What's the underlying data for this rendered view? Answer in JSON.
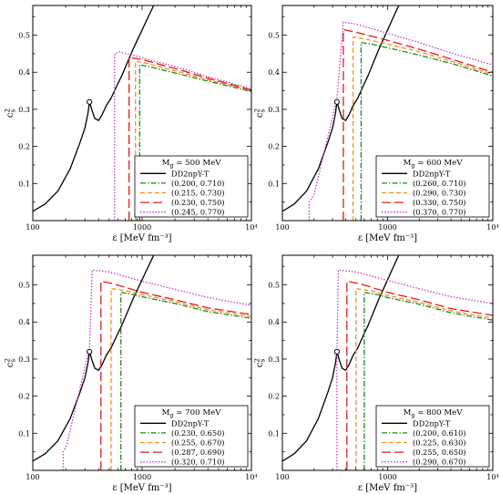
{
  "chart_data": [
    {
      "type": "line",
      "panel": "top-left",
      "xlabel": "ε [MeV fm⁻³]",
      "ylabel": "c_s²",
      "xscale": "log",
      "xlim": [
        100,
        10000
      ],
      "ylim": [
        0,
        0.58
      ],
      "xticks": [
        {
          "value": 100,
          "label": "100"
        },
        {
          "value": 1000,
          "label": "1000"
        },
        {
          "value": 10000,
          "label": "10⁴"
        }
      ],
      "yticks": [
        {
          "value": 0.1,
          "label": "0.1"
        },
        {
          "value": 0.2,
          "label": "0.2"
        },
        {
          "value": 0.3,
          "label": "0.3"
        },
        {
          "value": 0.4,
          "label": "0.4"
        },
        {
          "value": 0.5,
          "label": "0.5"
        }
      ],
      "legend_title": "M_g = 500 MeV",
      "legend_placement": "bottom-right",
      "critical_point": {
        "x": 330,
        "y": 0.32
      },
      "series": [
        {
          "name": "DD2npY-T",
          "color": "#000000",
          "dash": "solid",
          "x": [
            100,
            130,
            170,
            220,
            270,
            300,
            320,
            330,
            350,
            370,
            400,
            430,
            470,
            520,
            580,
            650,
            730,
            820,
            950,
            1100,
            1300,
            1500,
            1700
          ],
          "y": [
            0.025,
            0.045,
            0.08,
            0.14,
            0.21,
            0.25,
            0.29,
            0.32,
            0.295,
            0.275,
            0.27,
            0.285,
            0.31,
            0.33,
            0.36,
            0.39,
            0.425,
            0.46,
            0.5,
            0.54,
            0.585,
            0.62,
            0.65
          ]
        },
        {
          "name": "(0.200, 0.710)",
          "color": "#1a8a1a",
          "dash": "dashdot",
          "x": [
            950,
            950,
            1200,
            2000,
            4000,
            10000
          ],
          "y": [
            0.0,
            0.42,
            0.414,
            0.398,
            0.376,
            0.348
          ]
        },
        {
          "name": "(0.215, 0.730)",
          "color": "#ff8c1a",
          "dash": "dash",
          "x": [
            870,
            870,
            1100,
            2000,
            4000,
            10000
          ],
          "y": [
            0.0,
            0.43,
            0.424,
            0.404,
            0.38,
            0.35
          ]
        },
        {
          "name": "(0.230, 0.750)",
          "color": "#e31a1c",
          "dash": "longdash",
          "x": [
            760,
            760,
            1000,
            2000,
            4000,
            10000
          ],
          "y": [
            0.0,
            0.44,
            0.434,
            0.41,
            0.384,
            0.352
          ]
        },
        {
          "name": "(0.245, 0.770)",
          "color": "#cc33cc",
          "dash": "dot",
          "x": [
            560,
            560,
            620,
            800,
            1200,
            2000,
            4000,
            10000
          ],
          "y": [
            0.0,
            0.45,
            0.455,
            0.447,
            0.432,
            0.416,
            0.388,
            0.355
          ]
        }
      ]
    },
    {
      "type": "line",
      "panel": "top-right",
      "xlabel": "ε [MeV fm⁻³]",
      "ylabel": "c_s²",
      "xscale": "log",
      "xlim": [
        100,
        10000
      ],
      "ylim": [
        0,
        0.58
      ],
      "xticks": [
        {
          "value": 100,
          "label": "100"
        },
        {
          "value": 1000,
          "label": "1000"
        },
        {
          "value": 10000,
          "label": "10⁴"
        }
      ],
      "yticks": [
        {
          "value": 0.1,
          "label": "0.1"
        },
        {
          "value": 0.2,
          "label": "0.2"
        },
        {
          "value": 0.3,
          "label": "0.3"
        },
        {
          "value": 0.4,
          "label": "0.4"
        },
        {
          "value": 0.5,
          "label": "0.5"
        }
      ],
      "legend_title": "M_g = 600 MeV",
      "legend_placement": "bottom-right",
      "critical_point": {
        "x": 330,
        "y": 0.32
      },
      "series": [
        {
          "name": "DD2npY-T",
          "color": "#000000",
          "dash": "solid",
          "x": [
            100,
            130,
            170,
            220,
            270,
            300,
            320,
            330,
            350,
            370,
            400,
            430,
            470,
            520,
            580,
            650,
            730,
            820,
            950,
            1100,
            1300,
            1500,
            1700
          ],
          "y": [
            0.025,
            0.045,
            0.08,
            0.14,
            0.21,
            0.25,
            0.29,
            0.32,
            0.295,
            0.275,
            0.27,
            0.285,
            0.31,
            0.33,
            0.36,
            0.39,
            0.425,
            0.46,
            0.5,
            0.54,
            0.585,
            0.62,
            0.65
          ]
        },
        {
          "name": "(0.260, 0.710)",
          "color": "#1a8a1a",
          "dash": "dashdot",
          "x": [
            560,
            560,
            700,
            1000,
            2000,
            4000,
            10000
          ],
          "y": [
            0.0,
            0.48,
            0.476,
            0.466,
            0.446,
            0.424,
            0.39
          ]
        },
        {
          "name": "(0.290, 0.730)",
          "color": "#ff8c1a",
          "dash": "dash",
          "x": [
            470,
            470,
            600,
            1000,
            2000,
            4000,
            10000
          ],
          "y": [
            0.0,
            0.495,
            0.49,
            0.476,
            0.455,
            0.43,
            0.395
          ]
        },
        {
          "name": "(0.330, 0.750)",
          "color": "#e31a1c",
          "dash": "longdash",
          "x": [
            380,
            380,
            500,
            1000,
            2000,
            4000,
            10000
          ],
          "y": [
            0.0,
            0.515,
            0.508,
            0.486,
            0.462,
            0.436,
            0.4
          ]
        },
        {
          "name": "(0.370, 0.770)",
          "color": "#cc33cc",
          "dash": "dot",
          "x": [
            180,
            180,
            200,
            330,
            380,
            500,
            1000,
            2000,
            4000,
            10000
          ],
          "y": [
            0.0,
            0.05,
            0.07,
            0.33,
            0.535,
            0.53,
            0.505,
            0.48,
            0.452,
            0.42
          ]
        }
      ]
    },
    {
      "type": "line",
      "panel": "bottom-left",
      "xlabel": "ε [MeV fm⁻³]",
      "ylabel": "c_s²",
      "xscale": "log",
      "xlim": [
        100,
        10000
      ],
      "ylim": [
        0,
        0.58
      ],
      "xticks": [
        {
          "value": 100,
          "label": "100"
        },
        {
          "value": 1000,
          "label": "1000"
        },
        {
          "value": 10000,
          "label": "10⁴"
        }
      ],
      "yticks": [
        {
          "value": 0.1,
          "label": "0.1"
        },
        {
          "value": 0.2,
          "label": "0.2"
        },
        {
          "value": 0.3,
          "label": "0.3"
        },
        {
          "value": 0.4,
          "label": "0.4"
        },
        {
          "value": 0.5,
          "label": "0.5"
        }
      ],
      "legend_title": "M_g = 700 MeV",
      "legend_placement": "bottom-right",
      "critical_point": {
        "x": 330,
        "y": 0.32
      },
      "series": [
        {
          "name": "DD2npY-T",
          "color": "#000000",
          "dash": "solid",
          "x": [
            100,
            130,
            170,
            220,
            270,
            300,
            320,
            330,
            350,
            370,
            400,
            430,
            470,
            520,
            580,
            650,
            730,
            820,
            950,
            1100,
            1300,
            1500,
            1700
          ],
          "y": [
            0.025,
            0.045,
            0.08,
            0.14,
            0.21,
            0.25,
            0.29,
            0.32,
            0.295,
            0.275,
            0.27,
            0.285,
            0.31,
            0.33,
            0.36,
            0.39,
            0.425,
            0.46,
            0.5,
            0.54,
            0.585,
            0.62,
            0.65
          ]
        },
        {
          "name": "(0.230, 0.650)",
          "color": "#1a8a1a",
          "dash": "dashdot",
          "x": [
            640,
            640,
            800,
            1000,
            2000,
            4000,
            10000
          ],
          "y": [
            0.0,
            0.48,
            0.475,
            0.468,
            0.45,
            0.428,
            0.41
          ]
        },
        {
          "name": "(0.255, 0.670)",
          "color": "#ff8c1a",
          "dash": "dash",
          "x": [
            520,
            520,
            700,
            1000,
            2000,
            4000,
            10000
          ],
          "y": [
            0.0,
            0.49,
            0.485,
            0.474,
            0.455,
            0.433,
            0.415
          ]
        },
        {
          "name": "(0.287, 0.690)",
          "color": "#e31a1c",
          "dash": "longdash",
          "x": [
            420,
            420,
            550,
            1000,
            2000,
            4000,
            10000
          ],
          "y": [
            0.0,
            0.51,
            0.503,
            0.48,
            0.46,
            0.438,
            0.42
          ]
        },
        {
          "name": "(0.320, 0.710)",
          "color": "#cc33cc",
          "dash": "dot",
          "x": [
            190,
            190,
            205,
            330,
            350,
            500,
            1000,
            2000,
            4000,
            10000
          ],
          "y": [
            0.0,
            0.05,
            0.07,
            0.33,
            0.54,
            0.535,
            0.51,
            0.488,
            0.466,
            0.445
          ]
        }
      ]
    },
    {
      "type": "line",
      "panel": "bottom-right",
      "xlabel": "ε [MeV fm⁻³]",
      "ylabel": "c_s²",
      "xscale": "log",
      "xlim": [
        100,
        10000
      ],
      "ylim": [
        0,
        0.58
      ],
      "xticks": [
        {
          "value": 100,
          "label": "100"
        },
        {
          "value": 1000,
          "label": "1000"
        },
        {
          "value": 10000,
          "label": "10⁴"
        }
      ],
      "yticks": [
        {
          "value": 0.1,
          "label": "0.1"
        },
        {
          "value": 0.2,
          "label": "0.2"
        },
        {
          "value": 0.3,
          "label": "0.3"
        },
        {
          "value": 0.4,
          "label": "0.4"
        },
        {
          "value": 0.5,
          "label": "0.5"
        }
      ],
      "legend_title": "M_g = 800 MeV",
      "legend_placement": "bottom-right",
      "critical_point": {
        "x": 330,
        "y": 0.32
      },
      "series": [
        {
          "name": "DD2npY-T",
          "color": "#000000",
          "dash": "solid",
          "x": [
            100,
            130,
            170,
            220,
            270,
            300,
            320,
            330,
            350,
            370,
            400,
            430,
            470,
            520,
            580,
            650,
            730,
            820,
            950,
            1100,
            1300,
            1500,
            1700
          ],
          "y": [
            0.025,
            0.045,
            0.08,
            0.14,
            0.21,
            0.25,
            0.29,
            0.32,
            0.295,
            0.275,
            0.27,
            0.285,
            0.31,
            0.33,
            0.36,
            0.39,
            0.425,
            0.46,
            0.5,
            0.54,
            0.585,
            0.62,
            0.65
          ]
        },
        {
          "name": "(0.200, 0.610)",
          "color": "#1a8a1a",
          "dash": "dashdot",
          "x": [
            600,
            600,
            800,
            1000,
            2000,
            4000,
            10000
          ],
          "y": [
            0.0,
            0.48,
            0.474,
            0.466,
            0.448,
            0.425,
            0.405
          ]
        },
        {
          "name": "(0.225, 0.630)",
          "color": "#ff8c1a",
          "dash": "dash",
          "x": [
            500,
            500,
            700,
            1000,
            2000,
            4000,
            10000
          ],
          "y": [
            0.0,
            0.49,
            0.484,
            0.472,
            0.453,
            0.43,
            0.41
          ]
        },
        {
          "name": "(0.255, 0.650)",
          "color": "#e31a1c",
          "dash": "longdash",
          "x": [
            410,
            410,
            550,
            1000,
            2000,
            4000,
            10000
          ],
          "y": [
            0.0,
            0.51,
            0.503,
            0.48,
            0.46,
            0.436,
            0.418
          ]
        },
        {
          "name": "(0.290, 0.670)",
          "color": "#cc33cc",
          "dash": "dot",
          "x": [
            330,
            330,
            340,
            500,
            1000,
            2000,
            4000,
            10000
          ],
          "y": [
            0.0,
            0.3,
            0.54,
            0.535,
            0.512,
            0.49,
            0.468,
            0.45
          ]
        }
      ]
    }
  ]
}
